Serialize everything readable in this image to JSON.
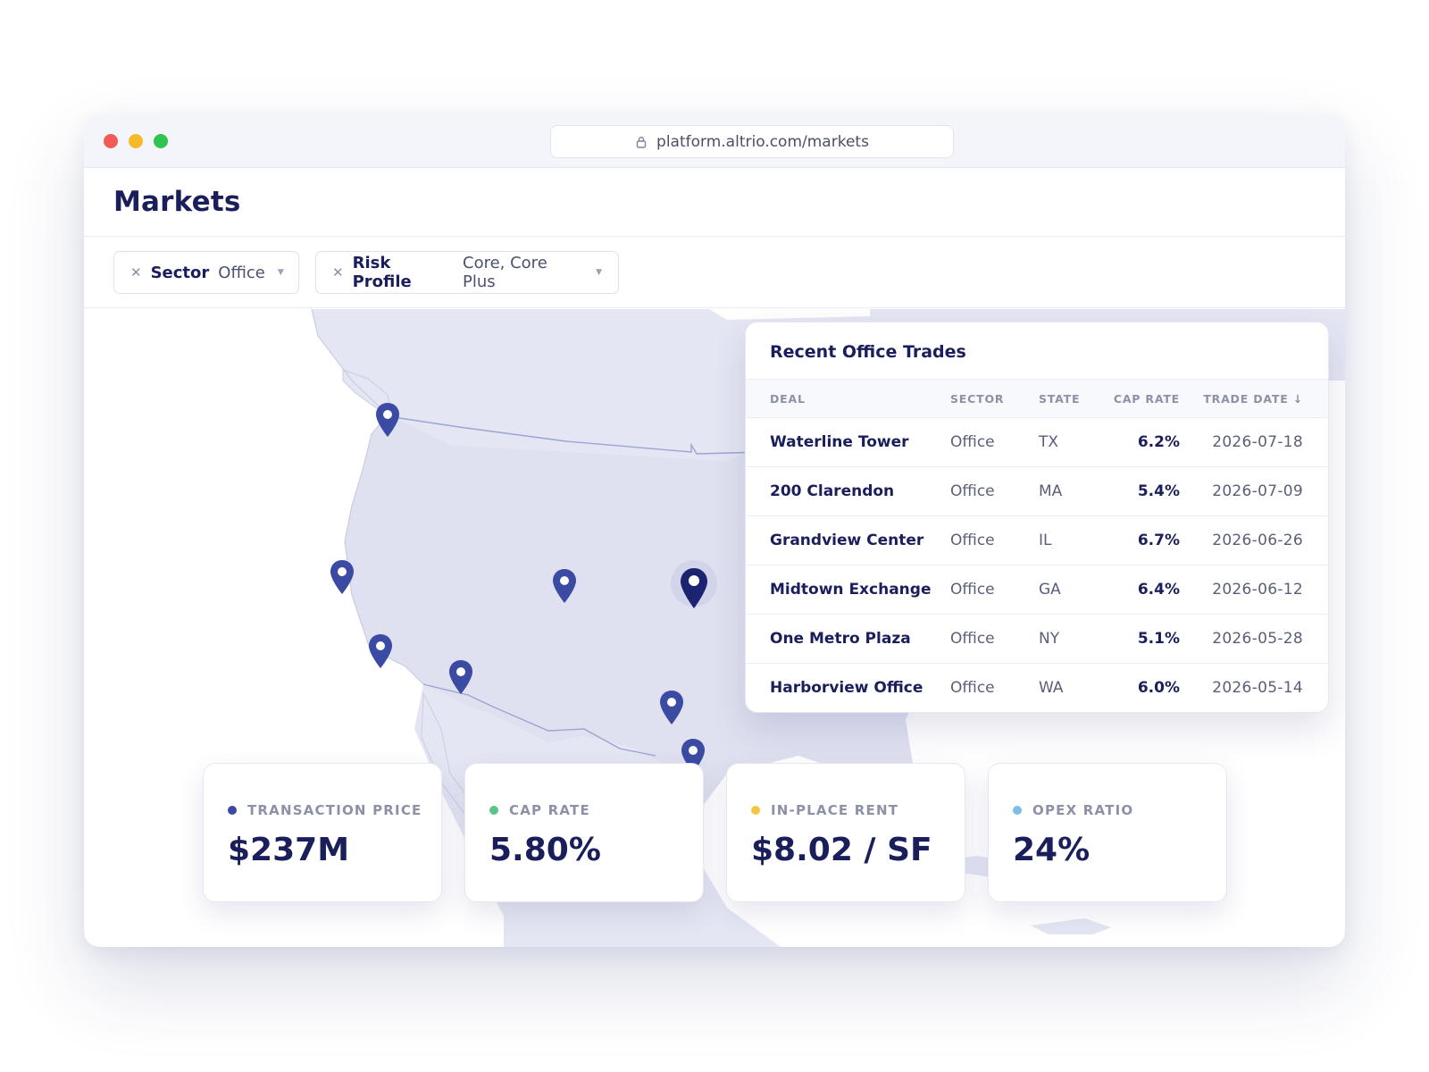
{
  "browser": {
    "url": "platform.altrio.com/markets"
  },
  "header": {
    "title": "Markets"
  },
  "filters": [
    {
      "key": "Sector",
      "value": "Office",
      "remove_icon": "close-icon",
      "dropdown_icon": "caret-down-icon"
    },
    {
      "key": "Risk Profile",
      "value": "Core, Core Plus",
      "remove_icon": "close-icon",
      "dropdown_icon": "caret-down-icon"
    }
  ],
  "trades": {
    "title": "Recent Office Trades",
    "columns": [
      "DEAL",
      "SECTOR",
      "STATE",
      "CAP RATE",
      "TRADE DATE ↓"
    ],
    "rows": [
      {
        "deal": "Waterline Tower",
        "sector": "Office",
        "state": "TX",
        "cap_rate": "6.2%",
        "date": "2026-07-18"
      },
      {
        "deal": "200 Clarendon",
        "sector": "Office",
        "state": "MA",
        "cap_rate": "5.4%",
        "date": "2026-07-09"
      },
      {
        "deal": "Grandview Center",
        "sector": "Office",
        "state": "IL",
        "cap_rate": "6.7%",
        "date": "2026-06-26"
      },
      {
        "deal": "Midtown Exchange",
        "sector": "Office",
        "state": "GA",
        "cap_rate": "6.4%",
        "date": "2026-06-12"
      },
      {
        "deal": "One Metro Plaza",
        "sector": "Office",
        "state": "NY",
        "cap_rate": "5.1%",
        "date": "2026-05-28"
      },
      {
        "deal": "Harborview Office",
        "sector": "Office",
        "state": "WA",
        "cap_rate": "6.0%",
        "date": "2026-05-14"
      }
    ]
  },
  "metrics": [
    {
      "label": "TRANSACTION PRICE",
      "value": "$237M",
      "dot_color": "#3b4aa3"
    },
    {
      "label": "CAP RATE",
      "value": "5.80%",
      "dot_color": "#5cc48a"
    },
    {
      "label": "IN-PLACE RENT",
      "value": "$8.02 / SF",
      "dot_color": "#f5c542"
    },
    {
      "label": "OPEX RATIO",
      "value": "24%",
      "dot_color": "#7bbfe6"
    }
  ],
  "colors": {
    "brand_navy": "#1a1f5c",
    "pin": "#3b4aa3",
    "pin_selected": "#1c2370",
    "land": "#e4e6f3"
  },
  "map": {
    "pin_icon": "map-pin-icon"
  }
}
